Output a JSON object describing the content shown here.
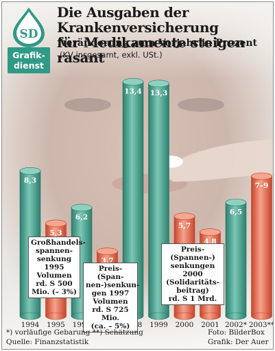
{
  "branding": {
    "logo_text": "SD",
    "tag": [
      "Grafik-",
      "dienst"
    ]
  },
  "header": {
    "title_line1": "Die Ausgaben der Krankenversicherung",
    "title_line2": "für Medikamente steigen rasant",
    "subtitle": "Veränderung zum Vorjahr in Prozent",
    "note": "(KV insgesamt, exkl. USt.)"
  },
  "colors": {
    "green": "#3f9e8a",
    "red": "#e8654a",
    "background_photo": "#d9c8bd"
  },
  "chart_data": {
    "type": "bar",
    "title": "Die Ausgaben der Krankenversicherung für Medikamente steigen rasant",
    "subtitle": "Veränderung zum Vorjahr in Prozent",
    "categories": [
      "1994",
      "1995",
      "1996",
      "1997",
      "1998",
      "1999",
      "2000",
      "2001",
      "2002*",
      "2003**"
    ],
    "values": [
      8.3,
      5.3,
      6.2,
      3.7,
      13.4,
      13.3,
      5.7,
      4.8,
      6.5,
      8.0
    ],
    "value_labels": [
      "8,3",
      "5,3",
      "6,2",
      "3,7",
      "13,4",
      "13,3",
      "5,7",
      "4,8",
      "6,5",
      "7–9"
    ],
    "bar_colors": [
      "green",
      "red",
      "green",
      "red",
      "green",
      "green",
      "red",
      "red",
      "green",
      "red"
    ],
    "ylim": [
      0,
      14
    ],
    "grid": false,
    "xlabel": "",
    "ylabel": ""
  },
  "callouts": {
    "c1995": [
      "Großhandels-",
      "spannen-",
      "senkung 1995",
      "Volumen",
      "rd. S 500",
      "Mio. (– 3%)"
    ],
    "c1997": [
      "Preis-(Span-",
      "nen-)senkun-",
      "gen 1997",
      "Volumen",
      "rd. S 725 Mio.",
      "(ca. – 5%)"
    ],
    "c2000": [
      "Preis-(Spannen-)",
      "senkungen 2000",
      "(Solidaritäts-",
      "beitrag)",
      "rd. S 1 Mrd."
    ]
  },
  "footer": {
    "footnote": "*) vorläufige Gebarung  **) Schätzung",
    "source": "Quelle: Finanzstatistik",
    "photo": "Foto: BilderBox",
    "graphic": "Grafik: Der Auer"
  }
}
